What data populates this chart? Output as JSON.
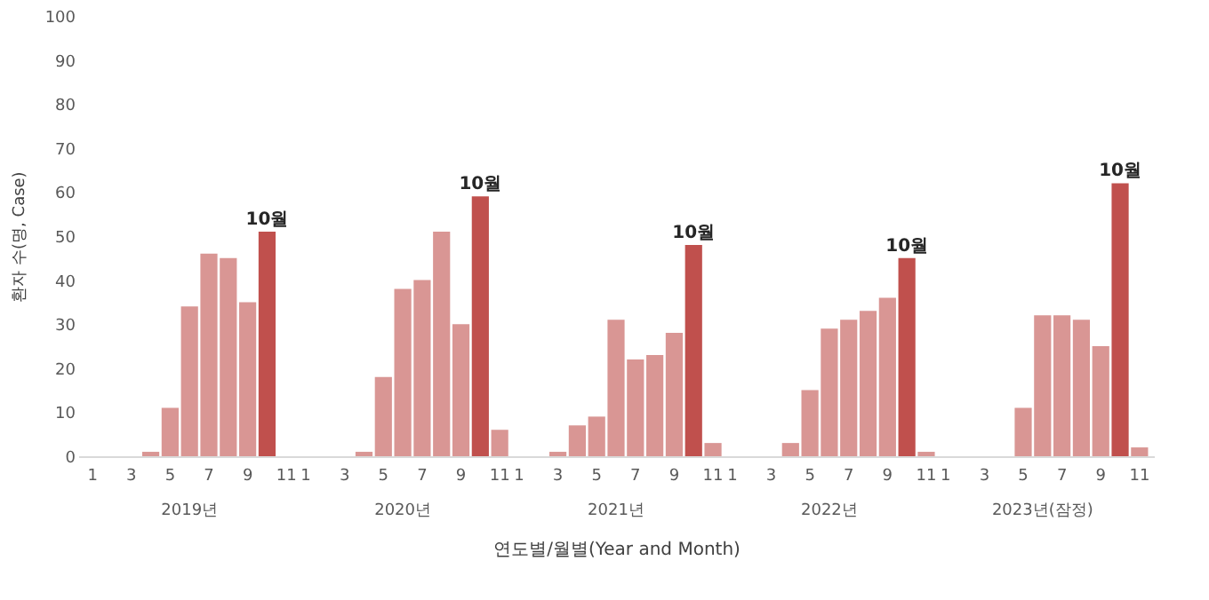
{
  "chart_data": {
    "type": "bar",
    "ylabel": "환자 수(명, Case)",
    "xlabel": "연도별/월별(Year and Month)",
    "categories": [
      "1",
      null,
      "3",
      null,
      "5",
      null,
      "7",
      null,
      "9",
      null,
      "11",
      "1",
      null,
      "3",
      null,
      "5",
      null,
      "7",
      null,
      "9",
      null,
      "11",
      "1",
      null,
      "3",
      null,
      "5",
      null,
      "7",
      null,
      "9",
      null,
      "11",
      "1",
      null,
      "3",
      null,
      "5",
      null,
      "7",
      null,
      "9",
      null,
      "11",
      "1",
      null,
      "3",
      null,
      "5",
      null,
      "7",
      null,
      "9",
      null,
      "11"
    ],
    "values": [
      0,
      0,
      0,
      1,
      11,
      34,
      46,
      45,
      35,
      51,
      0,
      0,
      0,
      0,
      1,
      18,
      38,
      40,
      51,
      30,
      59,
      6,
      0,
      0,
      1,
      7,
      9,
      31,
      22,
      23,
      28,
      48,
      3,
      0,
      0,
      0,
      3,
      15,
      29,
      31,
      33,
      36,
      45,
      1,
      0,
      0,
      0,
      0,
      11,
      32,
      32,
      31,
      25,
      62,
      2
    ],
    "colors": [
      "#d99694",
      "#d99694",
      "#d99694",
      "#d99694",
      "#d99694",
      "#d99694",
      "#d99694",
      "#d99694",
      "#d99694",
      "#c0504d",
      "#d99694",
      "#d99694",
      "#d99694",
      "#d99694",
      "#d99694",
      "#d99694",
      "#d99694",
      "#d99694",
      "#d99694",
      "#d99694",
      "#c0504d",
      "#d99694",
      "#d99694",
      "#d99694",
      "#d99694",
      "#d99694",
      "#d99694",
      "#d99694",
      "#d99694",
      "#d99694",
      "#d99694",
      "#c0504d",
      "#d99694",
      "#d99694",
      "#d99694",
      "#d99694",
      "#d99694",
      "#d99694",
      "#d99694",
      "#d99694",
      "#d99694",
      "#d99694",
      "#c0504d",
      "#d99694",
      "#d99694",
      "#d99694",
      "#d99694",
      "#d99694",
      "#d99694",
      "#d99694",
      "#d99694",
      "#d99694",
      "#d99694",
      "#c0504d",
      "#d99694"
    ],
    "annotations": [
      "2019년",
      "2020년",
      "2021년",
      "2022년",
      "2023년(잠정)",
      {
        "text": "10월",
        "y": 51
      },
      {
        "text": "10월",
        "y": 59
      },
      {
        "text": "10월",
        "y": 48
      },
      {
        "text": "10월",
        "y": 45
      },
      {
        "text": "10월",
        "y": 62
      }
    ],
    "ylim": [
      0,
      100
    ],
    "yticks": [
      0,
      10,
      20,
      30,
      40,
      50,
      60,
      70,
      80,
      90,
      100
    ],
    "grid": false
  }
}
